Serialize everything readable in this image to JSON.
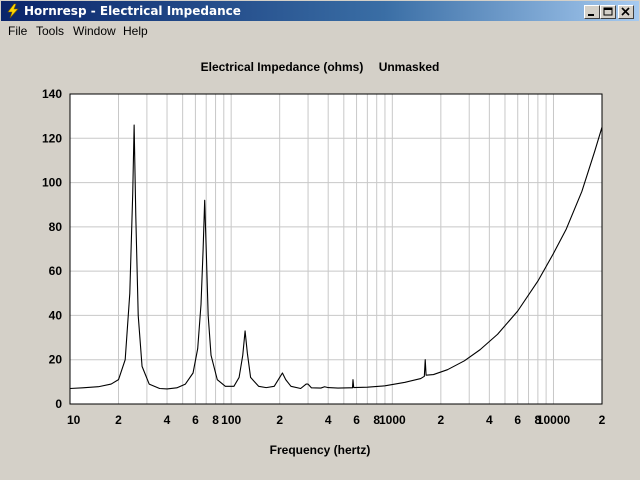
{
  "window": {
    "title": "Hornresp - Electrical Impedance",
    "icon": "lightning-icon"
  },
  "menu": [
    "File",
    "Tools",
    "Window",
    "Help"
  ],
  "colors": {
    "titlebar_start": "#0a246a",
    "titlebar_end": "#a6caf0",
    "face": "#d4d0c8",
    "plot_bg": "#ffffff",
    "grid": "#c8c8c8",
    "curve": "#000000"
  },
  "chart_data": {
    "type": "line",
    "title": "Electrical Impedance (ohms)",
    "status": "Unmasked",
    "xlabel": "Frequency (hertz)",
    "ylabel": "",
    "xscale": "log",
    "xlim": [
      10,
      20000
    ],
    "ylim": [
      0,
      140
    ],
    "grid": true,
    "yticks": [
      0,
      20,
      40,
      60,
      80,
      100,
      120,
      140
    ],
    "xtick_labels": [
      {
        "value": 10,
        "label": "10"
      },
      {
        "value": 20,
        "label": "2"
      },
      {
        "value": 40,
        "label": "4"
      },
      {
        "value": 60,
        "label": "6"
      },
      {
        "value": 80,
        "label": "8"
      },
      {
        "value": 100,
        "label": "100"
      },
      {
        "value": 200,
        "label": "2"
      },
      {
        "value": 400,
        "label": "4"
      },
      {
        "value": 600,
        "label": "6"
      },
      {
        "value": 800,
        "label": "8"
      },
      {
        "value": 1000,
        "label": "1000"
      },
      {
        "value": 2000,
        "label": "2"
      },
      {
        "value": 4000,
        "label": "4"
      },
      {
        "value": 6000,
        "label": "6"
      },
      {
        "value": 8000,
        "label": "8"
      },
      {
        "value": 10000,
        "label": "10000"
      },
      {
        "value": 20000,
        "label": "2"
      }
    ],
    "series": [
      {
        "points": [
          [
            10,
            7
          ],
          [
            12,
            7.3
          ],
          [
            15,
            7.8
          ],
          [
            18,
            9
          ],
          [
            20,
            11
          ],
          [
            22,
            20
          ],
          [
            23.5,
            50
          ],
          [
            24.5,
            95
          ],
          [
            25,
            126
          ],
          [
            25.6,
            85
          ],
          [
            26.5,
            40
          ],
          [
            28,
            17
          ],
          [
            31,
            9
          ],
          [
            36,
            7
          ],
          [
            40,
            6.8
          ],
          [
            46,
            7.3
          ],
          [
            52,
            9
          ],
          [
            58,
            14
          ],
          [
            62,
            25
          ],
          [
            65,
            45
          ],
          [
            67,
            70
          ],
          [
            68.5,
            92
          ],
          [
            70,
            70
          ],
          [
            72,
            40
          ],
          [
            75,
            22
          ],
          [
            82,
            11
          ],
          [
            92,
            8
          ],
          [
            104,
            8
          ],
          [
            112,
            12
          ],
          [
            118,
            22
          ],
          [
            122,
            33
          ],
          [
            126,
            23
          ],
          [
            132,
            12
          ],
          [
            148,
            8
          ],
          [
            165,
            7.4
          ],
          [
            185,
            8
          ],
          [
            200,
            12
          ],
          [
            208,
            14
          ],
          [
            218,
            11
          ],
          [
            235,
            8
          ],
          [
            270,
            7
          ],
          [
            292,
            9
          ],
          [
            300,
            9
          ],
          [
            315,
            7.3
          ],
          [
            360,
            7.2
          ],
          [
            380,
            7.8
          ],
          [
            400,
            7.4
          ],
          [
            460,
            7.2
          ],
          [
            540,
            7.3
          ],
          [
            566,
            7.3
          ],
          [
            570,
            11
          ],
          [
            576,
            7.4
          ],
          [
            700,
            7.6
          ],
          [
            900,
            8.2
          ],
          [
            1200,
            9.8
          ],
          [
            1500,
            11.5
          ],
          [
            1580,
            12.5
          ],
          [
            1600,
            20
          ],
          [
            1620,
            13
          ],
          [
            1800,
            13.3
          ],
          [
            2200,
            15.5
          ],
          [
            2800,
            19.5
          ],
          [
            3500,
            24.5
          ],
          [
            4500,
            31.5
          ],
          [
            6000,
            42
          ],
          [
            8000,
            55.5
          ],
          [
            10000,
            68
          ],
          [
            12000,
            79
          ],
          [
            15000,
            96
          ],
          [
            18000,
            114
          ],
          [
            20000,
            125
          ]
        ]
      }
    ]
  }
}
